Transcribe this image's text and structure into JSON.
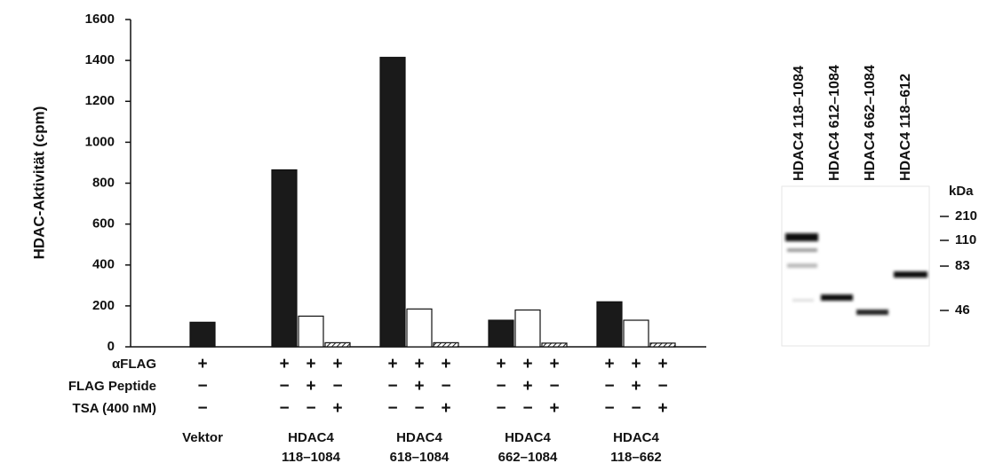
{
  "chart_data": {
    "type": "bar",
    "ylabel": "HDAC-Aktivität (cpm)",
    "categories": [
      [
        "Vektor"
      ],
      [
        "HDAC4",
        "118–1084"
      ],
      [
        "HDAC4",
        "618–1084"
      ],
      [
        "HDAC4",
        "662–1084"
      ],
      [
        "HDAC4",
        "118–662"
      ]
    ],
    "series": [
      {
        "color": "#1a1a1a",
        "values": [
          120,
          865,
          1415,
          130,
          220
        ]
      },
      {
        "color": "#ffffff",
        "values": [
          null,
          150,
          185,
          180,
          130
        ]
      },
      {
        "color": "#555555",
        "hatched": true,
        "values": [
          null,
          20,
          20,
          18,
          18
        ]
      }
    ],
    "ylim": [
      0,
      1600
    ],
    "yticks": [
      0,
      200,
      400,
      600,
      800,
      1000,
      1200,
      1400,
      1600
    ],
    "conditions": [
      {
        "label": "αFLAG",
        "signs": [
          [
            "+"
          ],
          [
            "+",
            "+",
            "+"
          ],
          [
            "+",
            "+",
            "+"
          ],
          [
            "+",
            "+",
            "+"
          ],
          [
            "+",
            "+",
            "+"
          ]
        ]
      },
      {
        "label": "FLAG Peptide",
        "signs": [
          [
            "−"
          ],
          [
            "−",
            "+",
            "−"
          ],
          [
            "−",
            "+",
            "−"
          ],
          [
            "−",
            "+",
            "−"
          ],
          [
            "−",
            "+",
            "−"
          ]
        ]
      },
      {
        "label": "TSA (400 nM)",
        "signs": [
          [
            "−"
          ],
          [
            "−",
            "−",
            "+"
          ],
          [
            "−",
            "−",
            "+"
          ],
          [
            "−",
            "−",
            "+"
          ],
          [
            "−",
            "−",
            "+"
          ]
        ]
      }
    ]
  },
  "blot": {
    "lanes": [
      "HDAC4 118–1084",
      "HDAC4 612–1084",
      "HDAC4 662–1084",
      "HDAC4 118–612"
    ],
    "unit": "kDa",
    "markers": [
      "210",
      "110",
      "83",
      "46"
    ]
  }
}
